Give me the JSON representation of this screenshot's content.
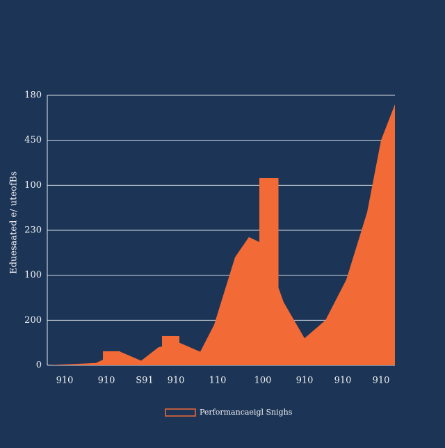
{
  "chart_data": {
    "type": "area",
    "y_label": "Eduesaated e/ uteofBs",
    "legend": "Performancaeigl Snighs",
    "color": "#f26a35",
    "xlim": [
      0,
      100
    ],
    "xticks": [
      {
        "value": 5,
        "label": "910"
      },
      {
        "value": 17,
        "label": "910"
      },
      {
        "value": 28,
        "label": "S91"
      },
      {
        "value": 37,
        "label": "910"
      },
      {
        "value": 49,
        "label": "110"
      },
      {
        "value": 62,
        "label": "100"
      },
      {
        "value": 74,
        "label": "910"
      },
      {
        "value": 85,
        "label": "910"
      },
      {
        "value": 96,
        "label": "910"
      }
    ],
    "ylim": [
      0,
      6
    ],
    "yticks": [
      0,
      {
        "value": 1,
        "label": "200"
      },
      {
        "value": 2,
        "label": "100"
      },
      {
        "value": 3,
        "label": "230"
      },
      {
        "value": 4,
        "label": "100"
      },
      {
        "value": 5,
        "label": "450"
      },
      {
        "value": 6,
        "label": "180"
      }
    ],
    "grid": true,
    "x": [
      0,
      14,
      21,
      27,
      32,
      38,
      44,
      48,
      54,
      58,
      62,
      68,
      74,
      80,
      86,
      92,
      96,
      100
    ],
    "values": [
      0,
      0.05,
      0.3,
      0.1,
      0.4,
      0.5,
      0.3,
      0.9,
      2.4,
      2.85,
      2.7,
      1.4,
      0.6,
      1.0,
      1.9,
      3.4,
      5.0,
      5.8
    ],
    "bars": [
      {
        "x": [
          16,
          21
        ],
        "value": 0.31
      },
      {
        "x": [
          33,
          38
        ],
        "value": 0.65
      },
      {
        "x": [
          61,
          66.5
        ],
        "value": 4.16
      }
    ]
  }
}
